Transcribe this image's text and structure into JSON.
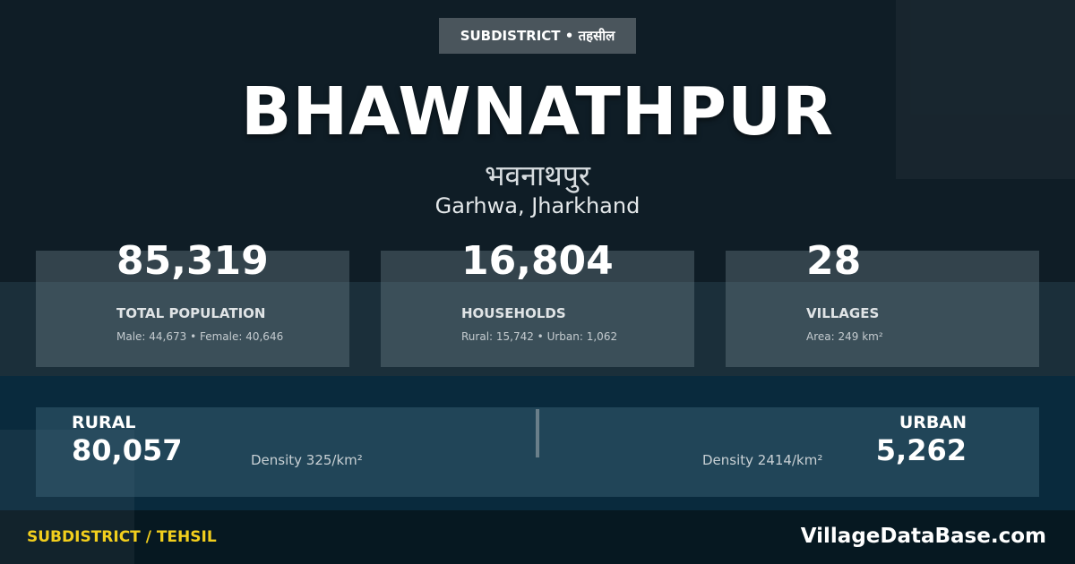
{
  "badge": "SUBDISTRICT • तहसील",
  "title": "BHAWNATHPUR",
  "title_hindi": "भवनाथपुर",
  "location": "Garhwa, Jharkhand",
  "stats": [
    {
      "value": "85,319",
      "label": "TOTAL POPULATION",
      "detail": "Male: 44,673 • Female: 40,646"
    },
    {
      "value": "16,804",
      "label": "HOUSEHOLDS",
      "detail": "Rural: 15,742 • Urban: 1,062"
    },
    {
      "value": "28",
      "label": "VILLAGES",
      "detail": "Area: 249 km²"
    }
  ],
  "rural": {
    "label": "RURAL",
    "value": "80,057",
    "density": "Density 325/km²"
  },
  "urban": {
    "label": "URBAN",
    "value": "5,262",
    "density": "Density 2414/km²"
  },
  "footer": {
    "category": "SUBDISTRICT / TEHSIL",
    "site": "VillageDataBase.com"
  },
  "colors": {
    "accent": "#f2cf1d"
  }
}
